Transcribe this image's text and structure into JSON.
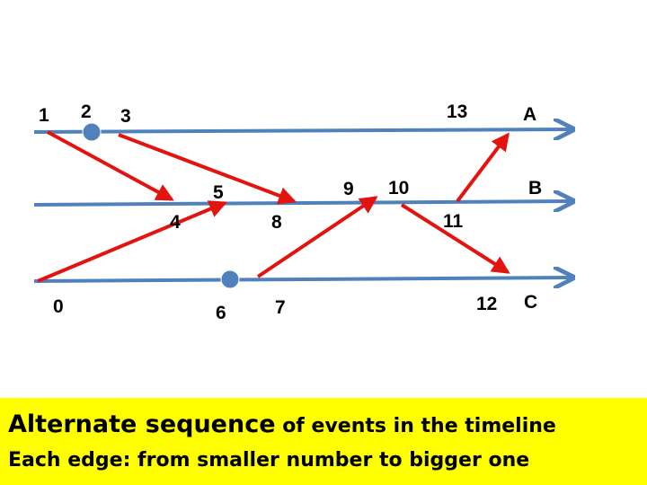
{
  "colors": {
    "timeline": "#4f81bd",
    "edge": "#e3140f",
    "dot": "#4f81bd",
    "caption_bg": "#ffff00"
  },
  "timelines": [
    {
      "name": "A"
    },
    {
      "name": "B"
    },
    {
      "name": "C"
    }
  ],
  "events": [
    "0",
    "1",
    "2",
    "3",
    "4",
    "5",
    "6",
    "7",
    "8",
    "9",
    "10",
    "11",
    "12",
    "13"
  ],
  "dots": [
    "2",
    "6"
  ],
  "edges": [
    {
      "from": "1",
      "to": "4"
    },
    {
      "from": "3",
      "to": "8"
    },
    {
      "from": "0",
      "to": "5"
    },
    {
      "from": "7",
      "to": "9"
    },
    {
      "from": "10",
      "to": "12"
    },
    {
      "from": "11",
      "to": "13"
    }
  ],
  "caption": {
    "line1_big": "Alternate sequence",
    "line1_rest": " of events in the timeline",
    "line2": "Each edge: from smaller number to bigger one"
  }
}
